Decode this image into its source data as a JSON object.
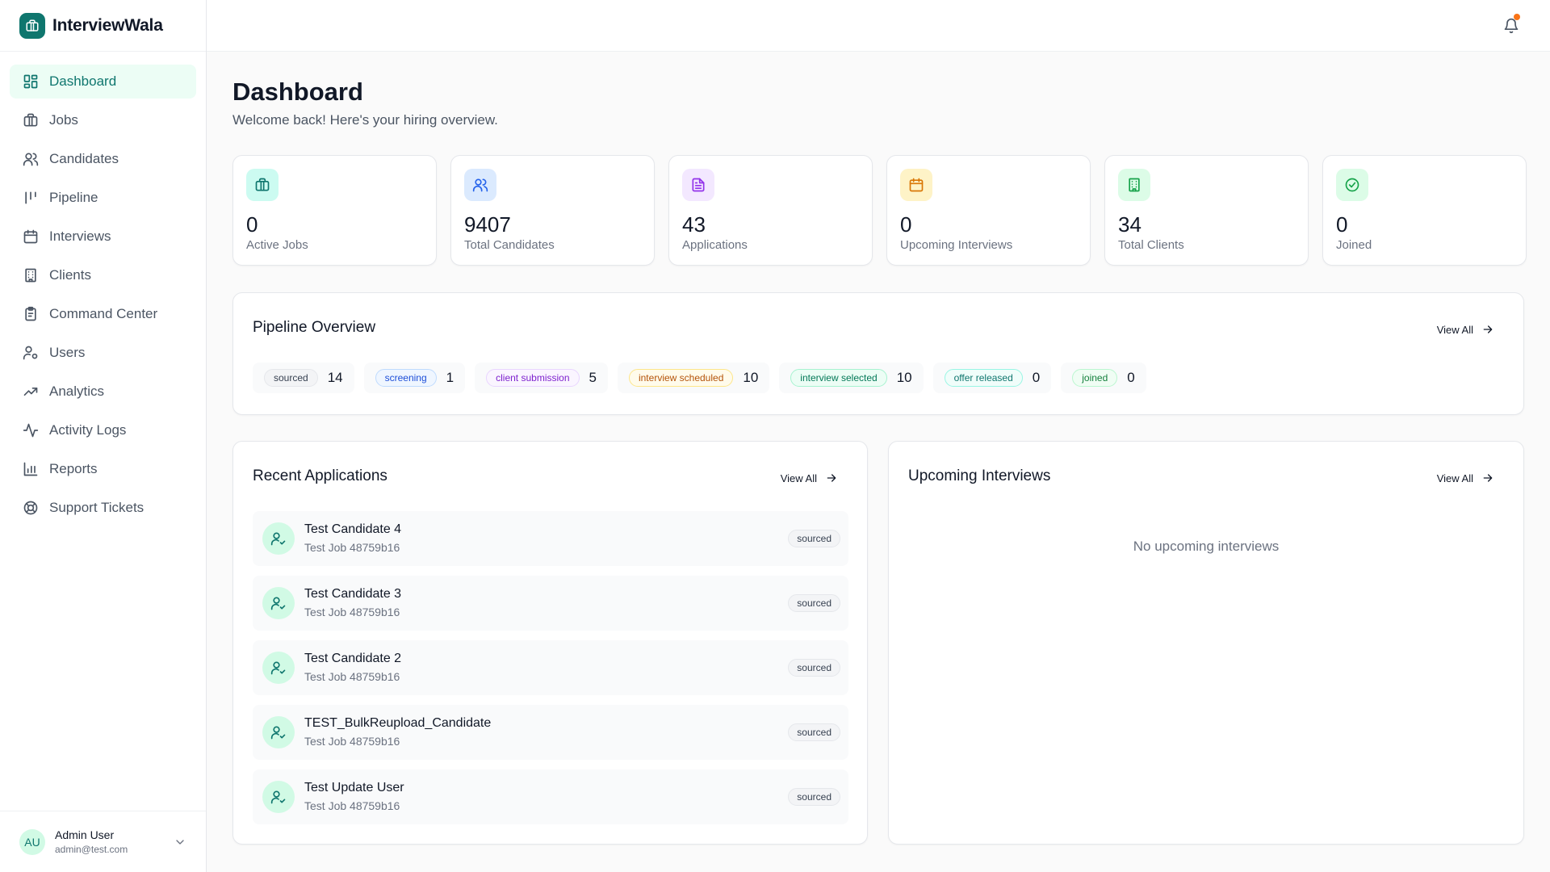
{
  "brand": {
    "name": "InterviewWala"
  },
  "nav": [
    {
      "label": "Dashboard",
      "icon": "dashboard-icon",
      "active": true
    },
    {
      "label": "Jobs",
      "icon": "briefcase-icon"
    },
    {
      "label": "Candidates",
      "icon": "users-icon"
    },
    {
      "label": "Pipeline",
      "icon": "pipeline-icon"
    },
    {
      "label": "Interviews",
      "icon": "calendar-icon"
    },
    {
      "label": "Clients",
      "icon": "building-icon"
    },
    {
      "label": "Command Center",
      "icon": "clipboard-icon"
    },
    {
      "label": "Users",
      "icon": "user-cog-icon"
    },
    {
      "label": "Analytics",
      "icon": "trending-up-icon"
    },
    {
      "label": "Activity Logs",
      "icon": "activity-icon"
    },
    {
      "label": "Reports",
      "icon": "bar-chart-icon"
    },
    {
      "label": "Support Tickets",
      "icon": "lifebuoy-icon"
    }
  ],
  "user": {
    "initials": "AU",
    "name": "Admin User",
    "email": "admin@test.com"
  },
  "header": {
    "title": "Dashboard",
    "subtitle": "Welcome back! Here's your hiring overview."
  },
  "stats": [
    {
      "value": "0",
      "label": "Active Jobs",
      "icon": "briefcase-icon",
      "color": "#0f766e",
      "bg": "#ccfbf1"
    },
    {
      "value": "9407",
      "label": "Total Candidates",
      "icon": "users-icon",
      "color": "#2563eb",
      "bg": "#dbeafe"
    },
    {
      "value": "43",
      "label": "Applications",
      "icon": "file-text-icon",
      "color": "#9333ea",
      "bg": "#f3e8ff"
    },
    {
      "value": "0",
      "label": "Upcoming Interviews",
      "icon": "calendar-icon",
      "color": "#d97706",
      "bg": "#fef3c7"
    },
    {
      "value": "34",
      "label": "Total Clients",
      "icon": "building-icon",
      "color": "#16a34a",
      "bg": "#dcfce7"
    },
    {
      "value": "0",
      "label": "Joined",
      "icon": "check-circle-icon",
      "color": "#16a34a",
      "bg": "#dcfce7"
    }
  ],
  "pipeline": {
    "title": "Pipeline Overview",
    "view_all": "View All",
    "stages": [
      {
        "label": "sourced",
        "count": "14",
        "color": "#374151",
        "bg": "#f3f4f6",
        "border": "#e5e7eb"
      },
      {
        "label": "screening",
        "count": "1",
        "color": "#1d4ed8",
        "bg": "#eff6ff",
        "border": "#bfdbfe"
      },
      {
        "label": "client submission",
        "count": "5",
        "color": "#7e22ce",
        "bg": "#faf5ff",
        "border": "#e9d5ff"
      },
      {
        "label": "interview scheduled",
        "count": "10",
        "color": "#b45309",
        "bg": "#fffbeb",
        "border": "#fde68a"
      },
      {
        "label": "interview selected",
        "count": "10",
        "color": "#047857",
        "bg": "#ecfdf5",
        "border": "#a7f3d0"
      },
      {
        "label": "offer released",
        "count": "0",
        "color": "#0f766e",
        "bg": "#f0fdfa",
        "border": "#99f6e4"
      },
      {
        "label": "joined",
        "count": "0",
        "color": "#15803d",
        "bg": "#f0fdf4",
        "border": "#bbf7d0"
      }
    ]
  },
  "recent_applications": {
    "title": "Recent Applications",
    "view_all": "View All",
    "items": [
      {
        "name": "Test Candidate 4",
        "job": "Test Job 48759b16",
        "status": "sourced"
      },
      {
        "name": "Test Candidate 3",
        "job": "Test Job 48759b16",
        "status": "sourced"
      },
      {
        "name": "Test Candidate 2",
        "job": "Test Job 48759b16",
        "status": "sourced"
      },
      {
        "name": "TEST_BulkReupload_Candidate",
        "job": "Test Job 48759b16",
        "status": "sourced"
      },
      {
        "name": "Test Update User",
        "job": "Test Job 48759b16",
        "status": "sourced"
      }
    ]
  },
  "upcoming_interviews": {
    "title": "Upcoming Interviews",
    "view_all": "View All",
    "empty_text": "No upcoming interviews"
  }
}
